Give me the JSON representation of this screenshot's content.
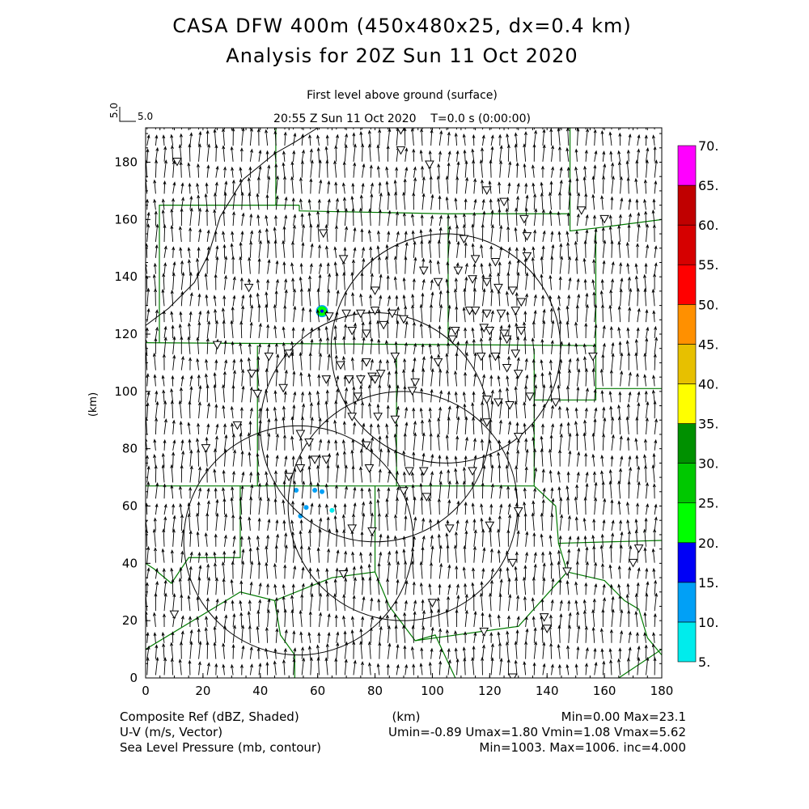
{
  "header": {
    "title_line1": "CASA DFW 400m (450x480x25, dx=0.4 km)",
    "title_line2": "Analysis for 20Z Sun 11 Oct 2020",
    "subtitle_line1": "First level above ground (surface)",
    "subtitle_line2": "20:55 Z Sun 11 Oct 2020    T=0.0 s (0:00:00)",
    "ref_vector_label": "5.0",
    "ref_vector_label_vertical": "5.0"
  },
  "footer": {
    "left": [
      "Composite Ref (dBZ, Shaded)",
      "U-V (m/s, Vector)",
      "Sea Level Pressure (mb, contour)"
    ],
    "center": "(km)",
    "right": [
      "Min=0.00 Max=23.1",
      "Umin=-0.89 Umax=1.80 Vmin=1.08 Vmax=5.62",
      "Min=1003. Max=1006. inc=4.000"
    ]
  },
  "chart_data": {
    "type": "map",
    "xlabel": "(km)",
    "ylabel": "(km)",
    "xlim": [
      0,
      180
    ],
    "ylim": [
      0,
      192
    ],
    "xticks": [
      "0",
      "20",
      "40",
      "60",
      "80",
      "100",
      "120",
      "140",
      "160",
      "180"
    ],
    "yticks": [
      "0",
      "20",
      "40",
      "60",
      "80",
      "100",
      "120",
      "140",
      "160",
      "180"
    ],
    "colorbar": {
      "levels": [
        "5.",
        "10.",
        "15.",
        "20.",
        "25.",
        "30.",
        "35.",
        "40.",
        "45.",
        "50.",
        "55.",
        "60.",
        "65.",
        "70."
      ],
      "colors": [
        "#00ecec",
        "#01a0f6",
        "#0000f6",
        "#00ff00",
        "#00c800",
        "#009000",
        "#ffff00",
        "#e7c000",
        "#ff9000",
        "#ff0000",
        "#d60000",
        "#c00000",
        "#ff00ff"
      ]
    },
    "reflectivity_echoes": [
      {
        "x": 61.5,
        "y": 128,
        "dbz": 23
      },
      {
        "x": 52.5,
        "y": 65.5,
        "dbz": 10
      },
      {
        "x": 59,
        "y": 65.5,
        "dbz": 12
      },
      {
        "x": 61.5,
        "y": 65,
        "dbz": 10
      },
      {
        "x": 56,
        "y": 59.5,
        "dbz": 14
      },
      {
        "x": 54,
        "y": 56.5,
        "dbz": 10
      },
      {
        "x": 65,
        "y": 58.5,
        "dbz": 7
      }
    ],
    "wind": {
      "umin": -0.89,
      "umax": 1.8,
      "vmin": 1.08,
      "vmax": 5.62,
      "ref_vector": 5.0
    },
    "radar_rings": [
      {
        "x": 53.3,
        "y": 48,
        "r": 40
      },
      {
        "x": 80,
        "y": 87.5,
        "r": 40
      },
      {
        "x": 89.7,
        "y": 60,
        "r": 40
      },
      {
        "x": 104.7,
        "y": 115,
        "r": 40
      }
    ],
    "stations": [
      [
        11,
        180
      ],
      [
        89,
        191
      ],
      [
        89,
        184
      ],
      [
        99,
        179
      ],
      [
        119,
        170
      ],
      [
        125,
        166
      ],
      [
        132,
        160
      ],
      [
        152,
        163
      ],
      [
        160,
        160
      ],
      [
        62,
        155
      ],
      [
        133,
        154
      ],
      [
        111,
        153
      ],
      [
        69,
        146
      ],
      [
        133,
        147
      ],
      [
        115,
        146
      ],
      [
        122,
        145
      ],
      [
        97,
        142
      ],
      [
        109,
        142
      ],
      [
        36,
        136
      ],
      [
        80,
        135
      ],
      [
        114,
        139
      ],
      [
        119,
        138
      ],
      [
        123,
        136
      ],
      [
        128,
        135
      ],
      [
        102,
        138
      ],
      [
        80,
        128
      ],
      [
        90,
        125
      ],
      [
        86,
        127
      ],
      [
        70,
        127
      ],
      [
        75,
        127
      ],
      [
        64,
        126
      ],
      [
        113,
        128
      ],
      [
        115,
        128
      ],
      [
        119,
        127
      ],
      [
        124,
        127
      ],
      [
        129,
        128
      ],
      [
        131,
        131
      ],
      [
        83,
        123
      ],
      [
        77,
        120
      ],
      [
        72,
        121
      ],
      [
        108,
        121
      ],
      [
        118,
        122
      ],
      [
        120,
        121
      ],
      [
        125,
        120
      ],
      [
        126,
        118
      ],
      [
        107,
        118
      ],
      [
        131,
        121
      ],
      [
        129,
        113
      ],
      [
        122,
        112
      ],
      [
        117,
        112
      ],
      [
        102,
        110
      ],
      [
        87,
        112
      ],
      [
        43,
        112
      ],
      [
        25,
        116
      ],
      [
        50,
        113
      ],
      [
        68,
        109
      ],
      [
        77,
        110
      ],
      [
        82,
        106
      ],
      [
        79,
        105
      ],
      [
        126,
        108
      ],
      [
        130,
        106
      ],
      [
        37,
        106
      ],
      [
        63,
        104
      ],
      [
        71,
        104
      ],
      [
        75,
        104
      ],
      [
        80,
        104
      ],
      [
        94,
        103
      ],
      [
        93,
        100
      ],
      [
        156,
        112
      ],
      [
        48,
        101
      ],
      [
        119,
        97
      ],
      [
        123,
        96
      ],
      [
        127,
        95
      ],
      [
        134,
        98
      ],
      [
        143,
        96
      ],
      [
        39,
        99
      ],
      [
        74,
        98
      ],
      [
        72,
        91
      ],
      [
        81,
        91
      ],
      [
        87,
        90
      ],
      [
        119,
        89
      ],
      [
        32,
        88
      ],
      [
        21,
        80
      ],
      [
        54,
        85
      ],
      [
        57,
        82
      ],
      [
        130,
        84
      ],
      [
        77,
        81
      ],
      [
        59,
        76
      ],
      [
        63,
        76
      ],
      [
        78,
        73
      ],
      [
        97,
        72
      ],
      [
        114,
        72
      ],
      [
        92,
        72
      ],
      [
        54,
        73
      ],
      [
        50,
        70
      ],
      [
        98,
        63
      ],
      [
        90,
        65
      ],
      [
        130,
        58
      ],
      [
        120,
        53
      ],
      [
        106,
        52
      ],
      [
        79,
        51
      ],
      [
        72,
        52
      ],
      [
        128,
        40
      ],
      [
        170,
        40
      ],
      [
        172,
        45
      ],
      [
        100,
        26
      ],
      [
        147,
        37
      ],
      [
        69,
        36
      ],
      [
        139,
        21
      ],
      [
        140,
        17
      ],
      [
        118,
        16
      ],
      [
        128,
        0
      ],
      [
        10,
        22
      ]
    ],
    "county_lines": [
      [
        [
          4.8,
          117
        ],
        [
          4.8,
          165
        ],
        [
          53.6,
          165
        ]
      ],
      [
        [
          45.4,
          165
        ],
        [
          45.4,
          192
        ]
      ],
      [
        [
          53.6,
          165
        ],
        [
          53.6,
          163
        ],
        [
          105.5,
          162
        ]
      ],
      [
        [
          105.5,
          162
        ],
        [
          105.5,
          115
        ]
      ],
      [
        [
          105.5,
          162
        ],
        [
          148,
          162
        ],
        [
          148,
          192
        ]
      ],
      [
        [
          148,
          162
        ],
        [
          148,
          156
        ],
        [
          157,
          157
        ],
        [
          180,
          160
        ]
      ],
      [
        [
          0,
          117
        ],
        [
          157,
          116
        ]
      ],
      [
        [
          157,
          157
        ],
        [
          157,
          97
        ],
        [
          135.5,
          97
        ]
      ],
      [
        [
          157,
          101
        ],
        [
          180,
          101
        ]
      ],
      [
        [
          135.5,
          115
        ],
        [
          135.5,
          67
        ]
      ],
      [
        [
          39,
          116
        ],
        [
          39,
          67
        ]
      ],
      [
        [
          87.5,
          116
        ],
        [
          87.5,
          67
        ]
      ],
      [
        [
          0,
          67
        ],
        [
          135.5,
          67
        ]
      ],
      [
        [
          0,
          40
        ],
        [
          3,
          38
        ],
        [
          9,
          33
        ],
        [
          15,
          42
        ],
        [
          33,
          42
        ],
        [
          33,
          67
        ]
      ],
      [
        [
          0,
          10
        ],
        [
          33,
          30
        ],
        [
          45,
          27
        ],
        [
          65,
          35
        ],
        [
          80,
          37
        ],
        [
          80,
          67
        ]
      ],
      [
        [
          80,
          37
        ],
        [
          85,
          25
        ],
        [
          94,
          13
        ],
        [
          101,
          15
        ],
        [
          108,
          0
        ]
      ],
      [
        [
          94,
          13
        ],
        [
          130,
          18
        ],
        [
          147,
          37
        ],
        [
          144,
          47
        ],
        [
          180,
          48
        ]
      ],
      [
        [
          135.5,
          67
        ],
        [
          143,
          60
        ],
        [
          144,
          47
        ]
      ],
      [
        [
          147,
          37
        ],
        [
          160,
          34
        ],
        [
          167,
          27
        ],
        [
          172,
          24
        ],
        [
          175,
          14
        ],
        [
          180,
          8
        ]
      ],
      [
        [
          165,
          0
        ],
        [
          180,
          10
        ]
      ],
      [
        [
          45,
          27
        ],
        [
          47,
          15
        ],
        [
          52,
          8
        ],
        [
          52,
          0
        ]
      ]
    ],
    "pressure_contours": [
      [
        [
          0,
          123
        ],
        [
          8,
          129
        ],
        [
          17,
          138
        ],
        [
          22,
          148
        ],
        [
          26,
          161
        ],
        [
          34,
          174
        ],
        [
          45,
          183
        ],
        [
          52,
          187
        ],
        [
          60,
          192
        ]
      ]
    ]
  }
}
